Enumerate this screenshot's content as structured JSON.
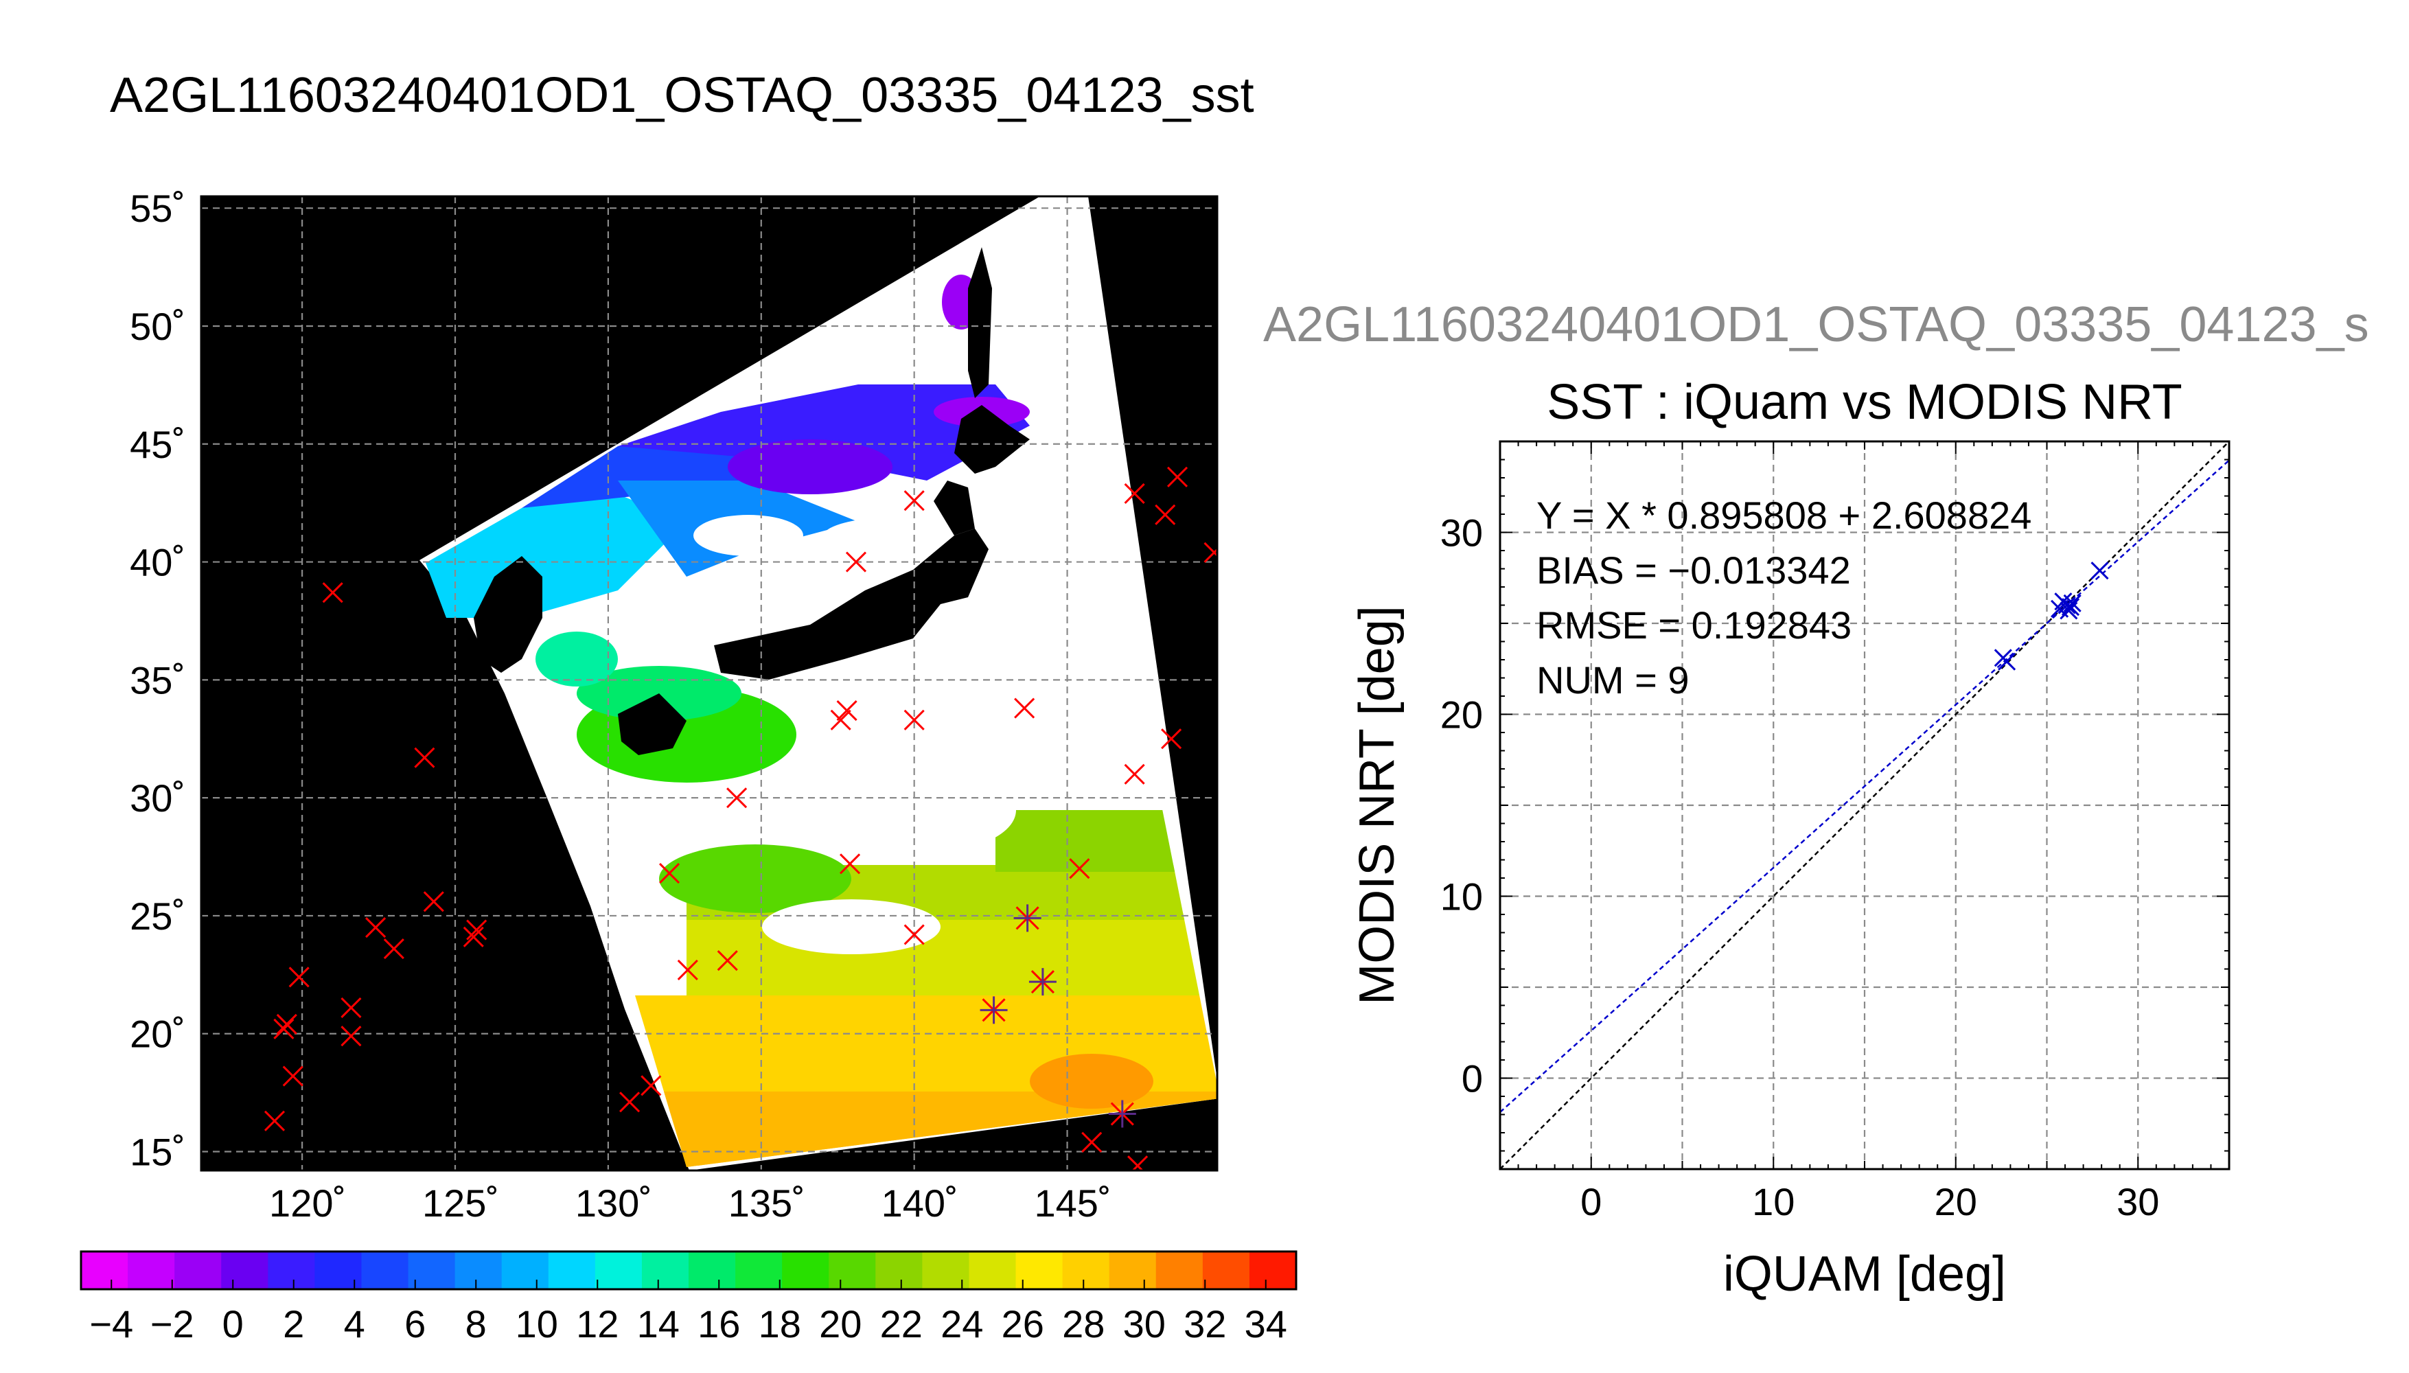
{
  "header": {
    "title": "A2GL11603240401OD1_OSTAQ_03335_04123_sst"
  },
  "chart_data": [
    {
      "type": "heatmap",
      "title": "A2GL11603240401OD1_OSTAQ_03335_04123_sst",
      "lon_ticks": [
        "120˚",
        "125˚",
        "130˚",
        "135˚",
        "140˚",
        "145˚"
      ],
      "lat_ticks": [
        "15˚",
        "20˚",
        "25˚",
        "30˚",
        "35˚",
        "40˚",
        "45˚",
        "50˚",
        "55˚"
      ],
      "xlim": [
        116.7,
        149.9
      ],
      "ylim": [
        14.2,
        55.5
      ],
      "colorbar": {
        "labels": [
          "−4",
          "−2",
          "0",
          "2",
          "4",
          "6",
          "8",
          "10",
          "12",
          "14",
          "16",
          "18",
          "20",
          "22",
          "24",
          "26",
          "28",
          "30",
          "32",
          "34"
        ],
        "range": [
          -5,
          35
        ],
        "colors": [
          "#e800ff",
          "#c400ff",
          "#9b00f6",
          "#6a00f2",
          "#3a1cff",
          "#1f28ff",
          "#1846ff",
          "#1266ff",
          "#0a8cff",
          "#00b0ff",
          "#00d6ff",
          "#00f2dc",
          "#00f0a0",
          "#00ea6a",
          "#10e838",
          "#28e000",
          "#58d800",
          "#8cd400",
          "#b2dc00",
          "#d8e400",
          "#ffe800",
          "#ffd000",
          "#ffb000",
          "#ff8000",
          "#ff4d00",
          "#ff1a00"
        ]
      },
      "markers": {
        "x_marks": [
          {
            "lon": 121.0,
            "lat": 38.7
          },
          {
            "lon": 124.0,
            "lat": 31.7
          },
          {
            "lon": 119.9,
            "lat": 22.4
          },
          {
            "lon": 119.5,
            "lat": 20.4
          },
          {
            "lon": 119.4,
            "lat": 20.2
          },
          {
            "lon": 119.7,
            "lat": 18.2
          },
          {
            "lon": 119.1,
            "lat": 16.3
          },
          {
            "lon": 121.6,
            "lat": 21.1
          },
          {
            "lon": 121.6,
            "lat": 19.9
          },
          {
            "lon": 122.4,
            "lat": 24.5
          },
          {
            "lon": 123.0,
            "lat": 23.6
          },
          {
            "lon": 124.3,
            "lat": 25.6
          },
          {
            "lon": 125.6,
            "lat": 24.1
          },
          {
            "lon": 125.7,
            "lat": 24.4
          },
          {
            "lon": 134.2,
            "lat": 30.0
          },
          {
            "lon": 132.0,
            "lat": 26.8
          },
          {
            "lon": 137.9,
            "lat": 27.2
          },
          {
            "lon": 132.6,
            "lat": 22.7
          },
          {
            "lon": 133.9,
            "lat": 23.1
          },
          {
            "lon": 137.6,
            "lat": 33.3
          },
          {
            "lon": 137.8,
            "lat": 33.7
          },
          {
            "lon": 138.1,
            "lat": 40.0
          },
          {
            "lon": 140.0,
            "lat": 42.6
          },
          {
            "lon": 140.0,
            "lat": 33.3
          },
          {
            "lon": 140.0,
            "lat": 24.2
          },
          {
            "lon": 143.6,
            "lat": 33.8
          },
          {
            "lon": 145.4,
            "lat": 27.0
          },
          {
            "lon": 147.2,
            "lat": 42.9
          },
          {
            "lon": 148.2,
            "lat": 42.0
          },
          {
            "lon": 148.6,
            "lat": 43.6
          },
          {
            "lon": 149.8,
            "lat": 40.4
          },
          {
            "lon": 148.4,
            "lat": 32.5
          },
          {
            "lon": 147.2,
            "lat": 31.0
          },
          {
            "lon": 130.7,
            "lat": 17.1
          },
          {
            "lon": 131.4,
            "lat": 17.8
          },
          {
            "lon": 145.8,
            "lat": 15.4
          },
          {
            "lon": 147.3,
            "lat": 14.4
          }
        ],
        "star_marks": [
          {
            "lon": 143.7,
            "lat": 24.9
          },
          {
            "lon": 142.6,
            "lat": 21.0
          },
          {
            "lon": 144.2,
            "lat": 22.2
          },
          {
            "lon": 146.8,
            "lat": 16.6
          }
        ]
      }
    },
    {
      "type": "scatter",
      "suptitle": "A2GL11603240401OD1_OSTAQ_03335_04123_s",
      "title": "SST : iQuam vs MODIS NRT",
      "xlabel": "iQUAM [deg]",
      "ylabel": "MODIS NRT [deg]",
      "xlim": [
        -5,
        35
      ],
      "ylim": [
        -5,
        35
      ],
      "xticks": [
        "0",
        "10",
        "20",
        "30"
      ],
      "yticks": [
        "0",
        "10",
        "20",
        "30"
      ],
      "grid": true,
      "annotations": [
        "Y = X * 0.895808 + 2.608824",
        "BIAS = −0.013342",
        "RMSE = 0.192843",
        "NUM = 9"
      ],
      "fit": {
        "slope": 0.895808,
        "intercept": 2.608824,
        "color": "#0000cc"
      },
      "identity_color": "#000000",
      "points": [
        {
          "x": 22.6,
          "y": 23.1
        },
        {
          "x": 22.8,
          "y": 22.9
        },
        {
          "x": 25.7,
          "y": 25.8
        },
        {
          "x": 26.1,
          "y": 26.0
        },
        {
          "x": 26.3,
          "y": 25.9
        },
        {
          "x": 25.9,
          "y": 26.2
        },
        {
          "x": 26.4,
          "y": 26.1
        },
        {
          "x": 26.2,
          "y": 25.7
        },
        {
          "x": 27.9,
          "y": 27.9
        }
      ]
    }
  ]
}
